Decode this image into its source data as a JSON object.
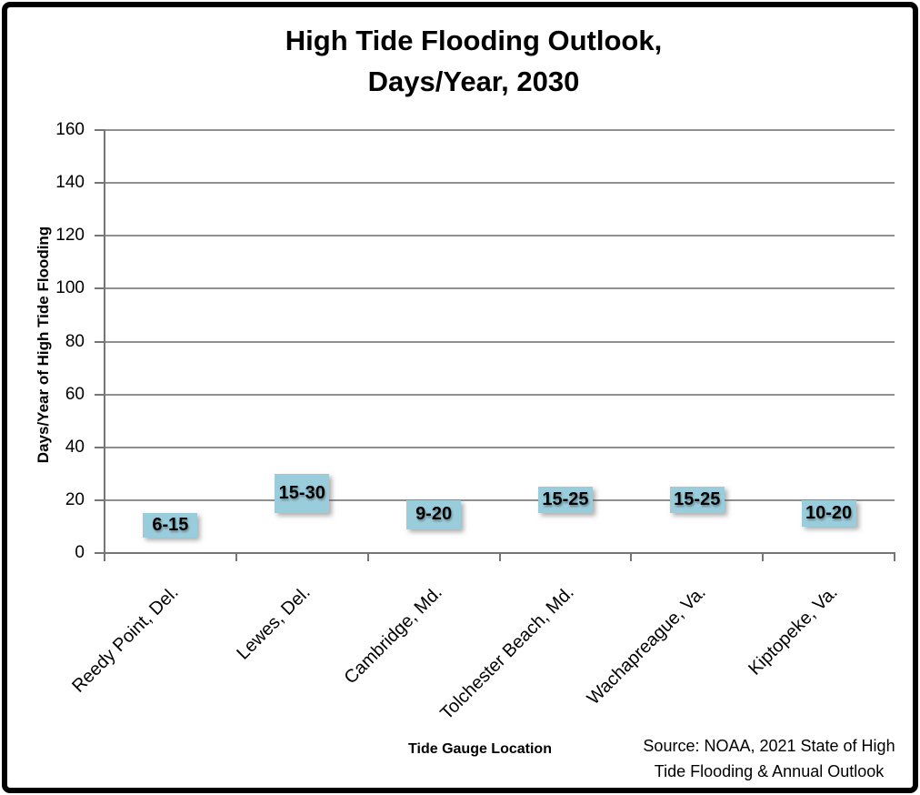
{
  "chart_data": {
    "type": "bar",
    "subtype": "floating-column-range",
    "title": "High Tide Flooding Outlook, Days/Year, 2030",
    "title_lines": [
      "High Tide Flooding Outlook,",
      "Days/Year, 2030"
    ],
    "xlabel": "Tide Gauge Location",
    "ylabel": "Days/Year of High Tide Flooding",
    "categories": [
      "Reedy Point, Del.",
      "Lewes, Del.",
      "Cambridge, Md.",
      "Tolchester Beach, Md.",
      "Wachapreague, Va.",
      "Kiptopeke, Va."
    ],
    "series": [
      {
        "low": [
          6,
          15,
          9,
          15,
          15,
          10
        ],
        "high": [
          15,
          30,
          20,
          25,
          25,
          20
        ],
        "labels": [
          "6-15",
          "15-30",
          "9-20",
          "15-25",
          "15-25",
          "10-20"
        ]
      }
    ],
    "ylim": [
      0,
      160
    ],
    "yticks": [
      0,
      20,
      40,
      60,
      80,
      100,
      120,
      140,
      160
    ],
    "grid": true,
    "legend": "none",
    "colors": {
      "bar": "#9ACDDC",
      "gridline": "#909090",
      "axis": "#767676",
      "text": "#000000"
    },
    "source_lines": [
      "Source: NOAA, 2021 State of High",
      "Tide Flooding & Annual Outlook"
    ]
  }
}
